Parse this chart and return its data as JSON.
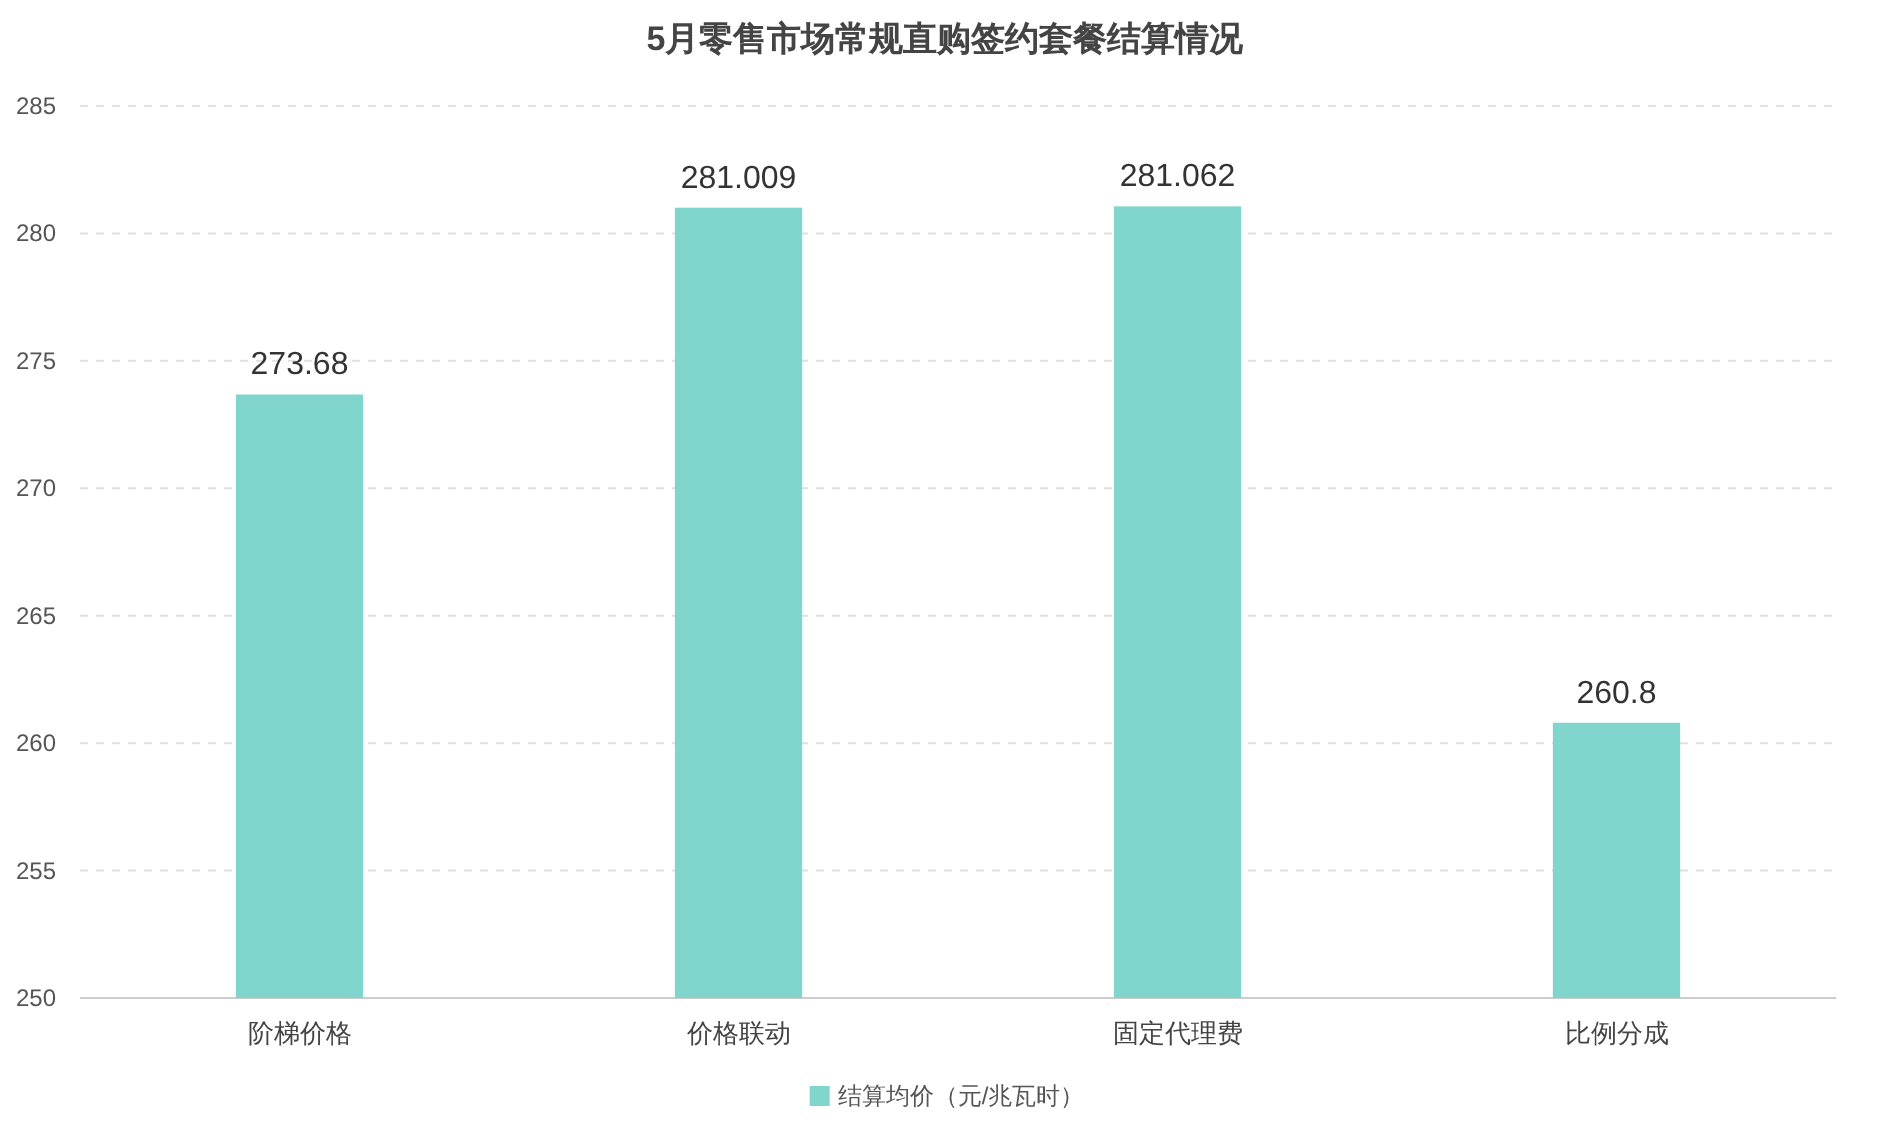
{
  "chart_data": {
    "type": "bar",
    "title": "5月零售市场常规直购签约套餐结算情况",
    "categories": [
      "阶梯价格",
      "价格联动",
      "固定代理费",
      "比例分成"
    ],
    "series": [
      {
        "name": "结算均价（元/兆瓦时）",
        "color": "#80d5cc",
        "values": [
          273.68,
          281.009,
          281.062,
          260.8
        ]
      }
    ],
    "ylim": [
      250,
      285
    ],
    "yticks": [
      250,
      255,
      260,
      265,
      270,
      275,
      280,
      285
    ],
    "grid": "y",
    "legend": "bottom",
    "data_labels": true
  }
}
